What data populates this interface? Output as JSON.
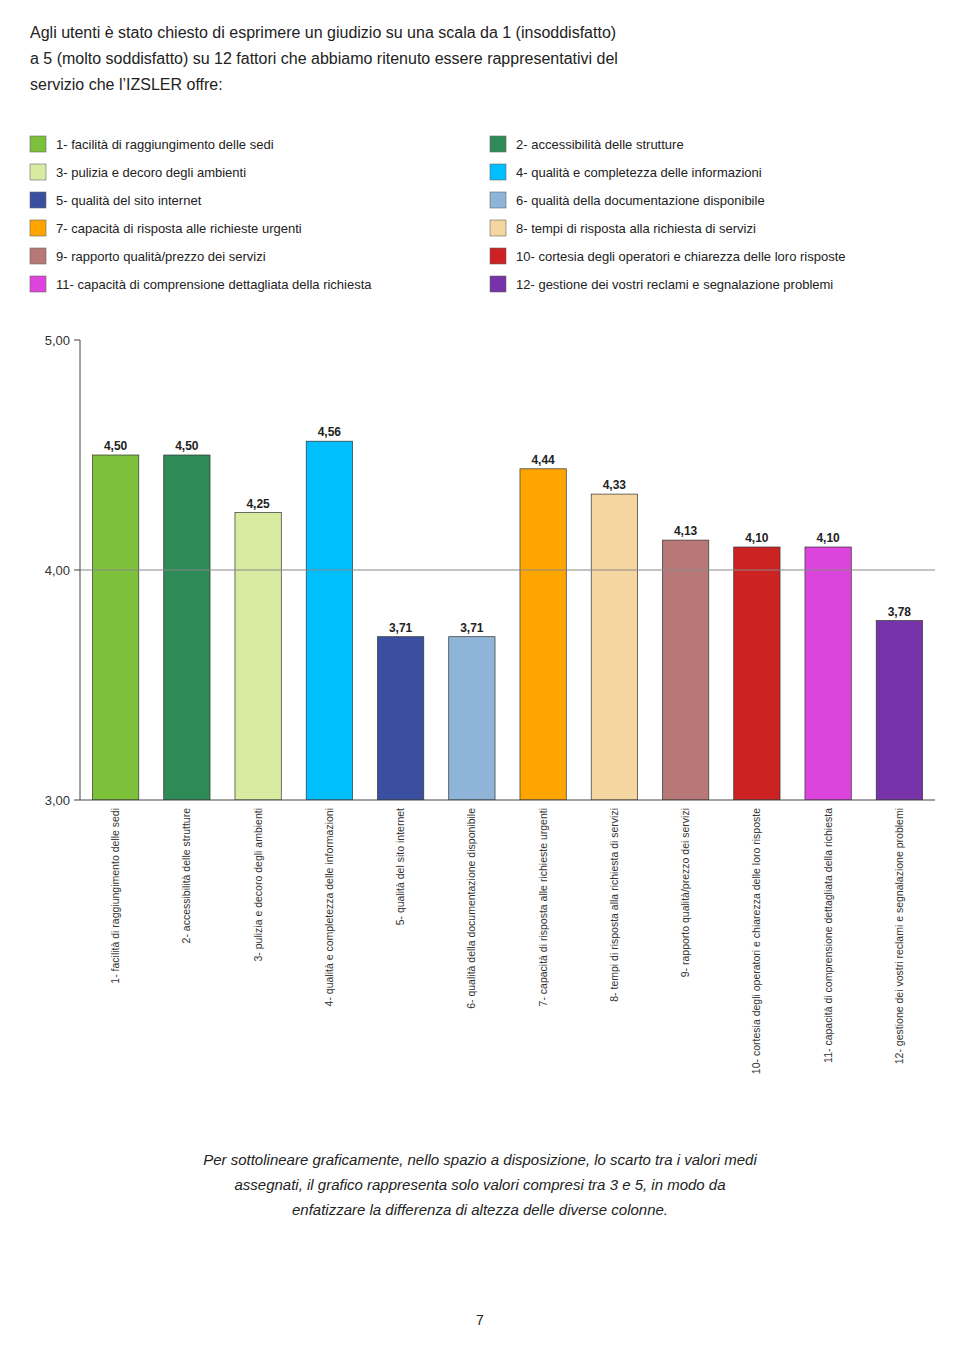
{
  "chart_data": {
    "type": "bar",
    "title": "Agli utenti è stato chiesto di esprimere un giudizio su una scala da 1 (insoddisfatto)\na 5 (molto soddisfatto) su 12 fattori che abbiamo ritenuto essere rappresentativi del\nservizio che l’IZSLER offre:",
    "annotations": [
      "Per sottolineare graficamente, nello spazio a disposizione, lo scarto tra i valori medi\nassegnati, il grafico rappresenta solo valori compresi tra 3 e 5, in modo da\nenfatizzare la differenza di altezza delle diverse colonne.",
      "7"
    ],
    "categories": [
      "1- facilità di raggiungimento delle sedi",
      "2- accessibilità delle strutture",
      "3- pulizia e decoro degli ambienti",
      "4- qualità e completezza delle informazioni",
      "5- qualità del sito internet",
      "6- qualità della documentazione disponibile",
      "7- capacità di risposta alle richieste urgenti",
      "8- tempi di risposta alla richiesta di servizi",
      "9- rapporto qualità/prezzo dei servizi",
      "10- cortesia degli operatori e chiarezza delle loro risposte",
      "11- capacità di comprensione dettagliata della richiesta",
      "12- gestione dei vostri reclami e segnalazione problemi"
    ],
    "values": [
      4.5,
      4.5,
      4.25,
      4.56,
      3.71,
      3.71,
      4.44,
      4.33,
      4.13,
      4.1,
      4.1,
      3.78
    ],
    "value_labels": [
      "4,50",
      "4,50",
      "4,25",
      "4,56",
      "3,71",
      "3,71",
      "4,44",
      "4,33",
      "4,13",
      "4,10",
      "4,10",
      "3,78"
    ],
    "data_labels": true,
    "colors": [
      "#7DC13A",
      "#2E8B57",
      "#D8EBA0",
      "#00BFFF",
      "#3A4FA0",
      "#8EB4D8",
      "#FFA500",
      "#F5D5A0",
      "#B87878",
      "#CC2222",
      "#DD44DD",
      "#7733AA"
    ],
    "legend": "top",
    "reference_line": 4.0,
    "ylim": [
      3.0,
      5.0
    ],
    "yticks": [
      {
        "value": 3.0,
        "label": "3,00"
      },
      {
        "value": 4.0,
        "label": "4,00"
      },
      {
        "value": 5.0,
        "label": "5,00"
      }
    ],
    "grid": false
  }
}
